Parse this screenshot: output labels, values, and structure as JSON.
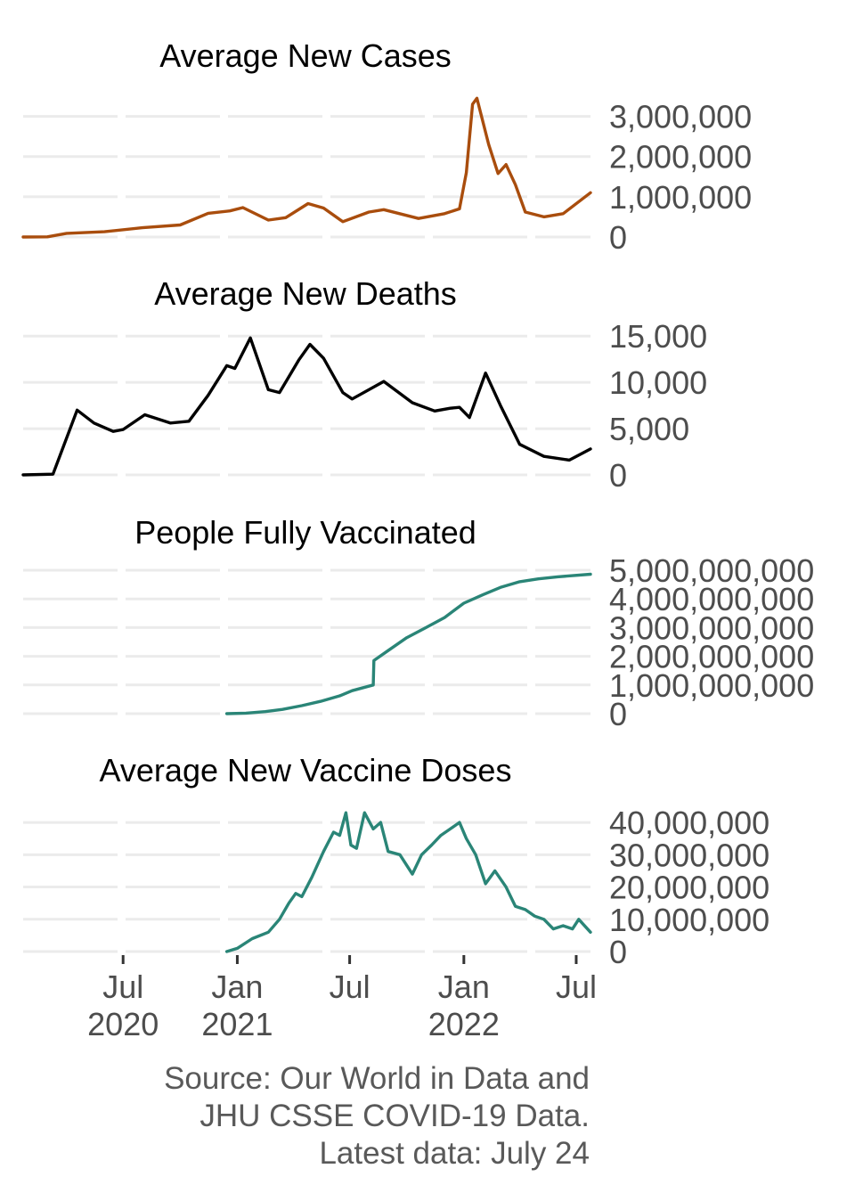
{
  "chart_data": [
    {
      "type": "line",
      "title": "Average New Cases",
      "color": "#a94d0d",
      "ylim": [
        0,
        3500000
      ],
      "yticks": [
        0,
        1000000,
        2000000,
        3000000
      ],
      "ytick_labels": [
        "0",
        "1,000,000",
        "2,000,000",
        "3,000,000"
      ],
      "x": [
        "2020-01-22",
        "2020-03-01",
        "2020-04-01",
        "2020-06-01",
        "2020-08-01",
        "2020-10-01",
        "2020-11-15",
        "2020-12-20",
        "2021-01-10",
        "2021-02-20",
        "2021-03-20",
        "2021-04-25",
        "2021-05-20",
        "2021-06-20",
        "2021-08-01",
        "2021-08-25",
        "2021-10-20",
        "2021-12-01",
        "2021-12-25",
        "2022-01-05",
        "2022-01-15",
        "2022-01-22",
        "2022-02-10",
        "2022-02-25",
        "2022-03-10",
        "2022-03-25",
        "2022-04-10",
        "2022-05-10",
        "2022-06-10",
        "2022-07-24"
      ],
      "values": [
        0,
        5000,
        90000,
        130000,
        230000,
        300000,
        590000,
        650000,
        730000,
        420000,
        480000,
        830000,
        720000,
        380000,
        620000,
        680000,
        460000,
        580000,
        700000,
        1600000,
        3300000,
        3450000,
        2300000,
        1580000,
        1800000,
        1300000,
        620000,
        500000,
        580000,
        1100000
      ]
    },
    {
      "type": "line",
      "title": "Average New Deaths",
      "color": "#000000",
      "ylim": [
        0,
        15500
      ],
      "yticks": [
        0,
        5000,
        10000,
        15000
      ],
      "ytick_labels": [
        "0",
        "5,000",
        "10,000",
        "15,000"
      ],
      "x": [
        "2020-01-22",
        "2020-03-10",
        "2020-04-18",
        "2020-05-15",
        "2020-06-15",
        "2020-07-01",
        "2020-08-05",
        "2020-09-15",
        "2020-10-15",
        "2020-11-15",
        "2020-12-15",
        "2020-12-28",
        "2021-01-22",
        "2021-02-20",
        "2021-03-10",
        "2021-04-10",
        "2021-04-28",
        "2021-05-20",
        "2021-06-20",
        "2021-07-05",
        "2021-08-25",
        "2021-10-10",
        "2021-11-15",
        "2021-12-10",
        "2021-12-25",
        "2022-01-10",
        "2022-02-05",
        "2022-03-01",
        "2022-04-01",
        "2022-05-10",
        "2022-06-20",
        "2022-07-24"
      ],
      "values": [
        0,
        80,
        7000,
        5600,
        4700,
        4900,
        6500,
        5600,
        5800,
        8600,
        11800,
        11500,
        14800,
        9200,
        8900,
        12400,
        14100,
        12600,
        8900,
        8200,
        10100,
        7800,
        6900,
        7200,
        7300,
        6200,
        11000,
        7500,
        3300,
        2000,
        1600,
        2800
      ]
    },
    {
      "type": "line",
      "title": "People Fully Vaccinated",
      "color": "#2a8577",
      "ylim": [
        0,
        5000000000
      ],
      "yticks": [
        0,
        1000000000,
        2000000000,
        3000000000,
        4000000000,
        5000000000
      ],
      "ytick_labels": [
        "0",
        "1,000,000,000",
        "2,000,000,000",
        "3,000,000,000",
        "4,000,000,000",
        "5,000,000,000"
      ],
      "x": [
        "2020-12-15",
        "2021-01-15",
        "2021-02-15",
        "2021-03-15",
        "2021-04-15",
        "2021-05-15",
        "2021-06-15",
        "2021-07-05",
        "2021-08-08",
        "2021-08-09",
        "2021-09-01",
        "2021-10-01",
        "2021-11-01",
        "2021-12-01",
        "2022-01-01",
        "2022-02-01",
        "2022-03-01",
        "2022-04-01",
        "2022-05-01",
        "2022-06-01",
        "2022-07-24"
      ],
      "values": [
        0,
        20000000,
        70000000,
        150000000,
        280000000,
        430000000,
        620000000,
        800000000,
        1000000000,
        1850000000,
        2200000000,
        2650000000,
        3000000000,
        3350000000,
        3850000000,
        4150000000,
        4400000000,
        4600000000,
        4700000000,
        4770000000,
        4860000000
      ]
    },
    {
      "type": "line",
      "title": "Average New Vaccine Doses",
      "color": "#2a8577",
      "ylim": [
        0,
        45000000
      ],
      "yticks": [
        0,
        10000000,
        20000000,
        30000000,
        40000000
      ],
      "ytick_labels": [
        "0",
        "10,000,000",
        "20,000,000",
        "30,000,000",
        "40,000,000"
      ],
      "x": [
        "2020-12-15",
        "2021-01-01",
        "2021-01-25",
        "2021-02-20",
        "2021-03-10",
        "2021-03-25",
        "2021-04-05",
        "2021-04-15",
        "2021-05-01",
        "2021-05-20",
        "2021-06-05",
        "2021-06-15",
        "2021-06-25",
        "2021-07-03",
        "2021-07-12",
        "2021-07-25",
        "2021-08-08",
        "2021-08-20",
        "2021-09-01",
        "2021-09-20",
        "2021-10-10",
        "2021-10-25",
        "2021-11-10",
        "2021-11-25",
        "2021-12-10",
        "2021-12-25",
        "2022-01-05",
        "2022-01-20",
        "2022-02-05",
        "2022-02-20",
        "2022-03-10",
        "2022-03-25",
        "2022-04-10",
        "2022-04-25",
        "2022-05-10",
        "2022-05-25",
        "2022-06-10",
        "2022-06-25",
        "2022-07-05",
        "2022-07-24"
      ],
      "values": [
        0,
        1000000,
        4000000,
        6000000,
        10000000,
        15000000,
        18000000,
        17000000,
        23000000,
        31000000,
        37000000,
        36000000,
        43000000,
        33000000,
        32000000,
        43000000,
        38000000,
        40000000,
        31000000,
        30000000,
        24000000,
        30000000,
        33000000,
        36000000,
        38000000,
        40000000,
        35000000,
        30000000,
        21000000,
        25000000,
        20000000,
        14000000,
        13000000,
        11000000,
        10000000,
        7000000,
        8000000,
        7000000,
        10000000,
        6000000
      ]
    }
  ],
  "x_axis": {
    "range": [
      "2020-01-22",
      "2022-07-24"
    ],
    "ticks": [
      {
        "date": "2020-07-01",
        "label": "Jul",
        "year": "2020"
      },
      {
        "date": "2021-01-01",
        "label": "Jan",
        "year": "2021"
      },
      {
        "date": "2021-07-01",
        "label": "Jul",
        "year": ""
      },
      {
        "date": "2022-01-01",
        "label": "Jan",
        "year": "2022"
      },
      {
        "date": "2022-07-01",
        "label": "Jul",
        "year": ""
      }
    ]
  },
  "caption": {
    "line1": "Source: Our World in Data and",
    "line2": "JHU CSSE COVID-19 Data.",
    "line3": "Latest data: July 24"
  }
}
